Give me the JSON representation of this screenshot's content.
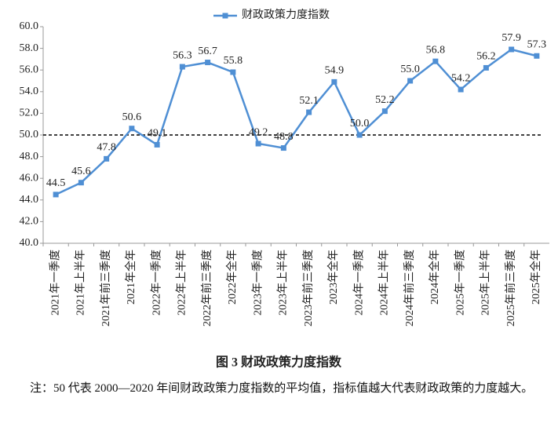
{
  "chart_data": {
    "type": "line",
    "categories": [
      "2021年一季度",
      "2021年上半年",
      "2021年前三季度",
      "2021年全年",
      "2022年一季度",
      "2022年上半年",
      "2022年前三季度",
      "2022年全年",
      "2023年一季度",
      "2023年上半年",
      "2023年前三季度",
      "2023年全年",
      "2024年一季度",
      "2024年上半年",
      "2024年前三季度",
      "2024年全年",
      "2025年一季度",
      "2025年上半年",
      "2025年前三季度",
      "2025年全年"
    ],
    "series": [
      {
        "name": "财政政策力度指数",
        "color": "#4f8fd4",
        "values": [
          44.5,
          45.6,
          47.8,
          50.6,
          49.1,
          56.3,
          56.7,
          55.8,
          49.2,
          48.8,
          52.1,
          54.9,
          50,
          52.2,
          55,
          56.8,
          54.2,
          56.2,
          57.9,
          57.3
        ],
        "value_labels": [
          "44.5",
          "45.6",
          "47.8",
          "50.6",
          "49.1",
          "56.3",
          "56.7",
          "55.8",
          "49.2",
          "48.8",
          "52.1",
          "54.9",
          "50.0",
          "52.2",
          "55.0",
          "56.8",
          "54.2",
          "56.2",
          "57.9",
          "57.3"
        ]
      }
    ],
    "ylim": [
      40,
      60
    ],
    "yticks": [
      {
        "value": 40,
        "label": "40.0"
      },
      {
        "value": 42,
        "label": "42.0"
      },
      {
        "value": 44,
        "label": "44.0"
      },
      {
        "value": 46,
        "label": "46.0"
      },
      {
        "value": 48,
        "label": "48.0"
      },
      {
        "value": 50,
        "label": "50.0"
      },
      {
        "value": 52,
        "label": "52.0"
      },
      {
        "value": 54,
        "label": "54.0"
      },
      {
        "value": 56,
        "label": "56.0"
      },
      {
        "value": 58,
        "label": "58.0"
      },
      {
        "value": 60,
        "label": "60.0"
      }
    ],
    "reference_line": 50,
    "grid": false,
    "legend": "top",
    "caption": "图 3  财政政策力度指数",
    "note": "注：50 代表 2000—2020 年间财政政策力度指数的平均值，指标值越大代表财政政策的力度越大。"
  }
}
